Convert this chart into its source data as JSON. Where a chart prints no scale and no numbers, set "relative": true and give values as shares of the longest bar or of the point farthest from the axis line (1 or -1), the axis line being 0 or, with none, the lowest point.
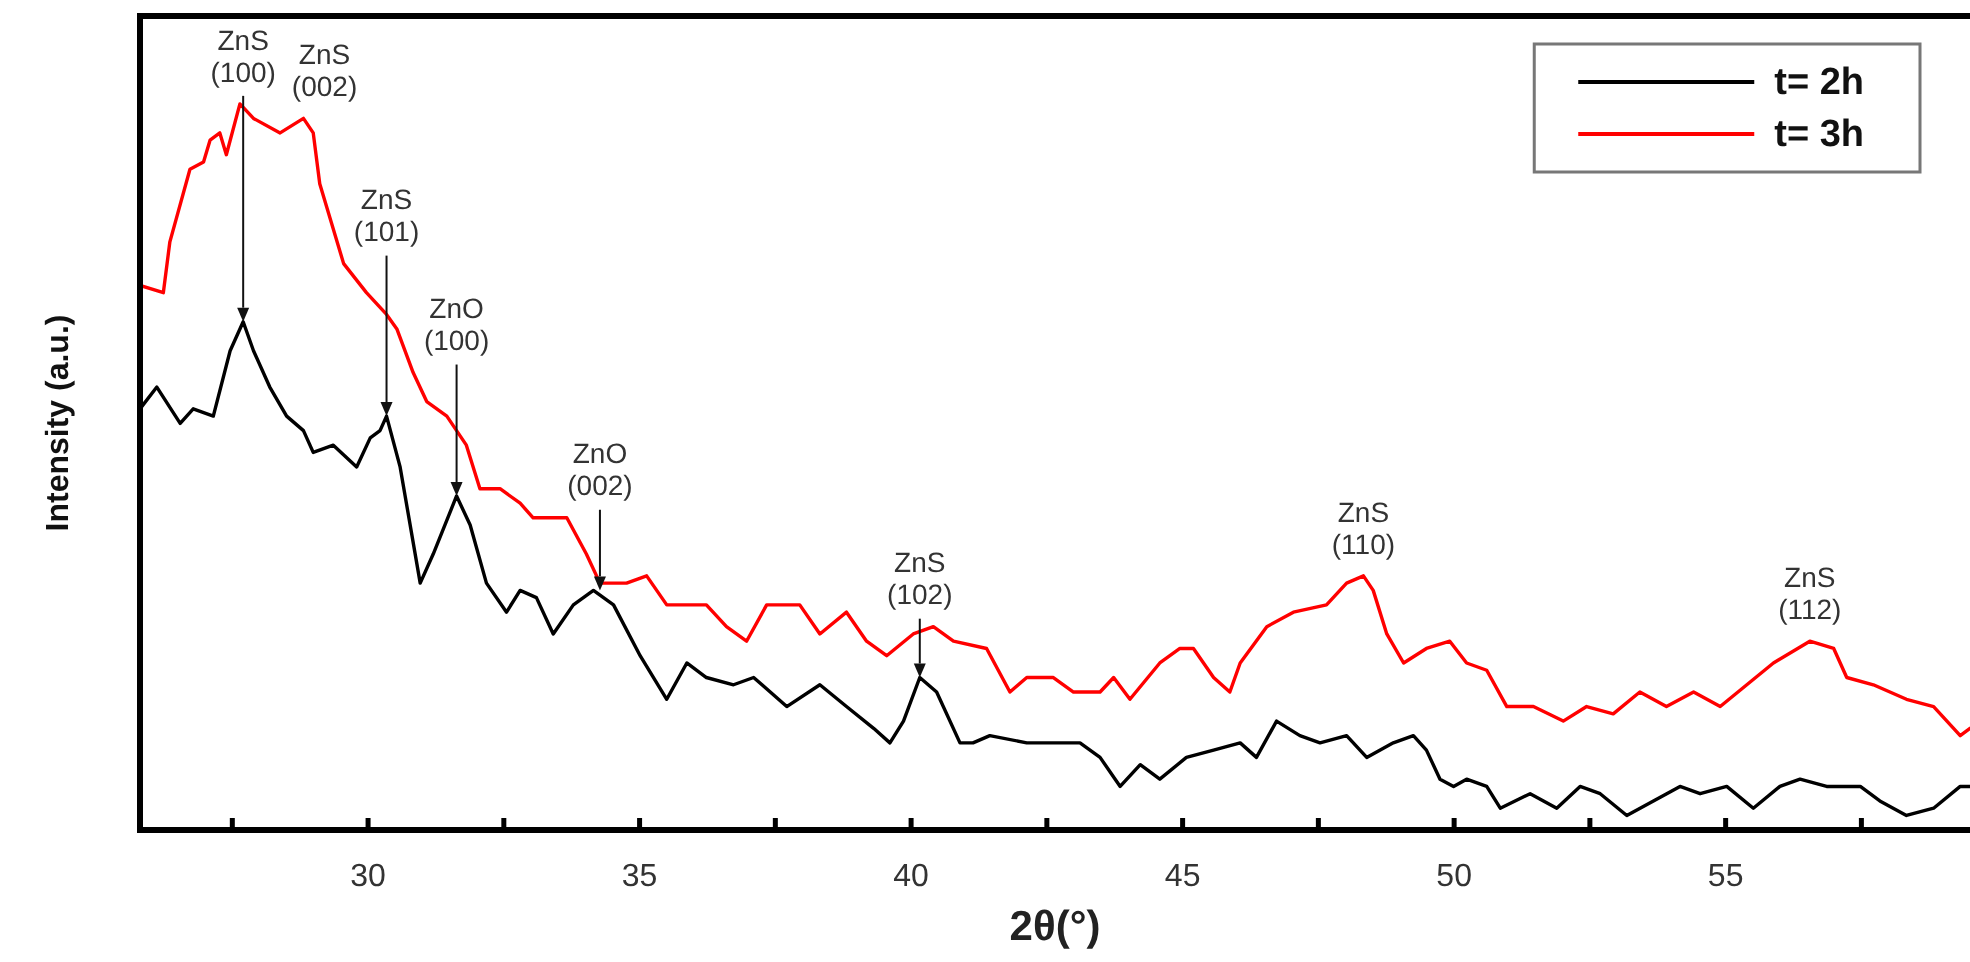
{
  "chart_data": {
    "type": "line",
    "xlabel": "2θ(°)",
    "ylabel": "Intensity (a.u.)",
    "relative": true,
    "xlim": [
      25.8,
      59.5
    ],
    "xticks": [
      {
        "value": 27.5,
        "label": null
      },
      30,
      {
        "value": 32.5,
        "label": null
      },
      35,
      {
        "value": 37.5,
        "label": null
      },
      40,
      {
        "value": 42.5,
        "label": null
      },
      45,
      {
        "value": 47.5,
        "label": null
      },
      50,
      {
        "value": 52.5,
        "label": null
      },
      55,
      {
        "value": 57.5,
        "label": null
      }
    ],
    "series": [
      {
        "name": "t= 2h",
        "color": "#000000",
        "x": [
          25.8,
          26.11,
          26.54,
          26.78,
          27.15,
          27.46,
          27.7,
          27.89,
          28.19,
          28.5,
          28.81,
          28.99,
          29.36,
          29.79,
          30.04,
          30.22,
          30.34,
          30.59,
          30.96,
          31.2,
          31.63,
          31.88,
          32.18,
          32.55,
          32.8,
          33.1,
          33.41,
          33.78,
          34.15,
          34.52,
          35.01,
          35.5,
          35.87,
          36.23,
          36.73,
          37.1,
          37.71,
          38.32,
          38.81,
          39.31,
          39.61,
          39.86,
          40.16,
          40.47,
          40.9,
          41.14,
          41.45,
          42.13,
          42.74,
          43.11,
          43.48,
          43.85,
          44.22,
          44.58,
          45.07,
          45.57,
          46.06,
          46.36,
          46.73,
          47.16,
          47.53,
          48.02,
          48.39,
          48.88,
          49.25,
          49.49,
          49.74,
          49.99,
          50.23,
          50.6,
          50.85,
          51.4,
          51.89,
          52.32,
          52.69,
          53.18,
          53.67,
          54.16,
          54.53,
          55.02,
          55.51,
          56.0,
          56.37,
          56.86,
          57.48,
          57.84,
          58.33,
          58.83,
          59.32,
          59.5
        ],
        "values": [
          0.58,
          0.61,
          0.56,
          0.58,
          0.57,
          0.66,
          0.7,
          0.66,
          0.61,
          0.57,
          0.55,
          0.52,
          0.53,
          0.5,
          0.54,
          0.55,
          0.57,
          0.5,
          0.34,
          0.38,
          0.46,
          0.42,
          0.34,
          0.3,
          0.33,
          0.32,
          0.27,
          0.31,
          0.33,
          0.31,
          0.24,
          0.18,
          0.23,
          0.21,
          0.2,
          0.21,
          0.17,
          0.2,
          0.17,
          0.14,
          0.12,
          0.15,
          0.21,
          0.19,
          0.12,
          0.12,
          0.13,
          0.12,
          0.12,
          0.12,
          0.1,
          0.06,
          0.09,
          0.07,
          0.1,
          0.11,
          0.12,
          0.1,
          0.15,
          0.13,
          0.12,
          0.13,
          0.1,
          0.12,
          0.13,
          0.11,
          0.07,
          0.06,
          0.07,
          0.06,
          0.03,
          0.05,
          0.03,
          0.06,
          0.05,
          0.02,
          0.04,
          0.06,
          0.05,
          0.06,
          0.03,
          0.06,
          0.07,
          0.06,
          0.06,
          0.04,
          0.02,
          0.03,
          0.06,
          0.06
        ]
      },
      {
        "name": "t= 3h",
        "color": "#ff0000",
        "x": [
          25.8,
          26.23,
          26.35,
          26.72,
          26.97,
          27.09,
          27.27,
          27.39,
          27.64,
          27.89,
          28.38,
          28.81,
          28.99,
          29.11,
          29.55,
          29.97,
          30.34,
          30.53,
          30.83,
          31.08,
          31.45,
          31.81,
          32.06,
          32.43,
          32.8,
          33.04,
          33.66,
          34.02,
          34.27,
          34.76,
          35.13,
          35.5,
          36.23,
          36.6,
          36.97,
          37.34,
          37.59,
          37.95,
          38.32,
          38.81,
          39.18,
          39.55,
          40.04,
          40.41,
          40.78,
          41.39,
          41.82,
          42.13,
          42.62,
          42.99,
          43.48,
          43.73,
          44.03,
          44.58,
          44.95,
          45.2,
          45.57,
          45.87,
          46.06,
          46.55,
          47.04,
          47.65,
          48.02,
          48.33,
          48.51,
          48.76,
          49.07,
          49.49,
          49.92,
          50.23,
          50.6,
          50.97,
          51.46,
          52.01,
          52.44,
          52.93,
          53.42,
          53.91,
          54.41,
          54.9,
          55.39,
          55.88,
          56.55,
          56.99,
          57.23,
          57.72,
          58.33,
          58.83,
          59.32,
          59.5
        ],
        "values": [
          0.75,
          0.74,
          0.81,
          0.91,
          0.92,
          0.95,
          0.96,
          0.93,
          1.0,
          0.98,
          0.96,
          0.98,
          0.96,
          0.89,
          0.78,
          0.74,
          0.71,
          0.69,
          0.63,
          0.59,
          0.57,
          0.53,
          0.47,
          0.47,
          0.45,
          0.43,
          0.43,
          0.38,
          0.34,
          0.34,
          0.35,
          0.31,
          0.31,
          0.28,
          0.26,
          0.31,
          0.31,
          0.31,
          0.27,
          0.3,
          0.26,
          0.24,
          0.27,
          0.28,
          0.26,
          0.25,
          0.19,
          0.21,
          0.21,
          0.19,
          0.19,
          0.21,
          0.18,
          0.23,
          0.25,
          0.25,
          0.21,
          0.19,
          0.23,
          0.28,
          0.3,
          0.31,
          0.34,
          0.35,
          0.33,
          0.27,
          0.23,
          0.25,
          0.26,
          0.23,
          0.22,
          0.17,
          0.17,
          0.15,
          0.17,
          0.16,
          0.19,
          0.17,
          0.19,
          0.17,
          0.2,
          0.23,
          0.26,
          0.25,
          0.21,
          0.2,
          0.18,
          0.17,
          0.13,
          0.14
        ]
      }
    ],
    "annotations": [
      {
        "text": "ZnS\n(100)",
        "x": 27.7,
        "y": 0.7
      },
      {
        "text": "ZnS\n(002)",
        "x": 28.81,
        "y": 0.98
      },
      {
        "text": "ZnS\n(101)",
        "x": 30.34,
        "y": 0.57
      },
      {
        "text": "ZnO\n(100)",
        "x": 31.63,
        "y": 0.46
      },
      {
        "text": "ZnO\n(002)",
        "x": 34.27,
        "y": 0.33
      },
      {
        "text": "ZnS\n(102)",
        "x": 40.16,
        "y": 0.21
      },
      {
        "text": "ZnS\n(110)",
        "x": 48.33,
        "y": 0.35
      },
      {
        "text": "ZnS\n(112)",
        "x": 56.55,
        "y": 0.26
      }
    ],
    "legend": "top right",
    "grid": false,
    "tick_labels": "x",
    "marker": "none"
  }
}
